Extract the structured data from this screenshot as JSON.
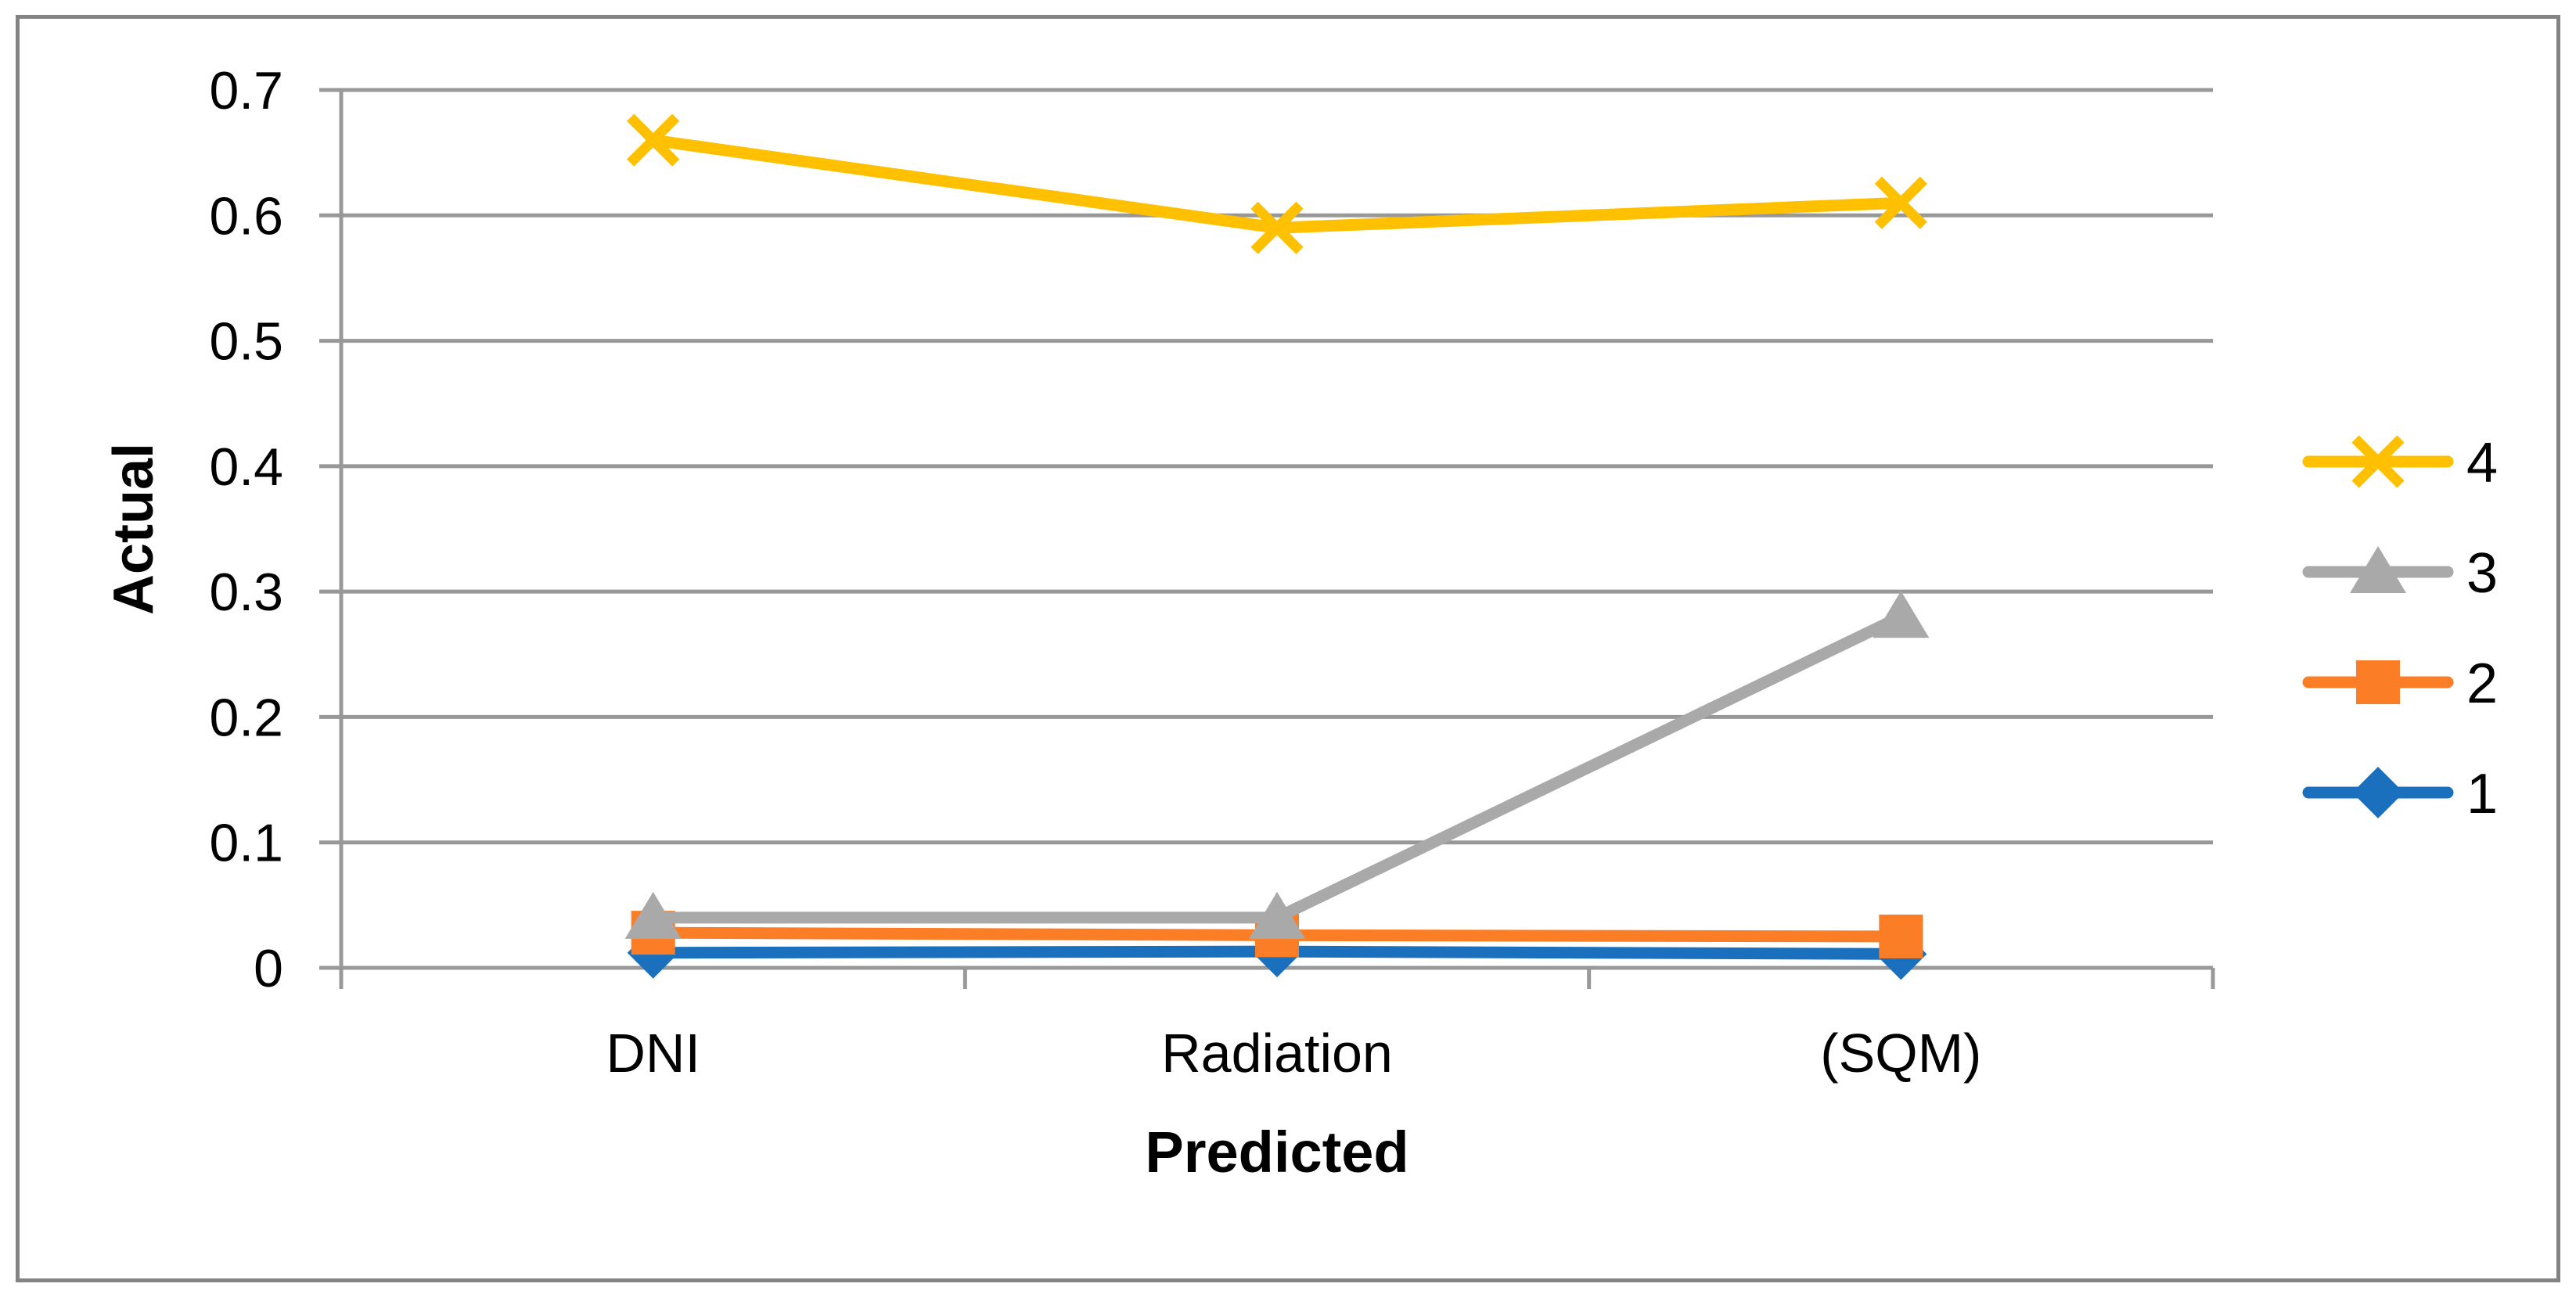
{
  "figure": {
    "background": "#ffffff",
    "border_color": "#838383"
  },
  "chart_data": {
    "type": "line",
    "title": "",
    "xlabel": "Predicted",
    "ylabel": "Actual",
    "categories": [
      "DNI",
      "Radiation",
      "(SQM)"
    ],
    "series": [
      {
        "name": "1",
        "marker": "diamond",
        "color": "#1B70BE",
        "values": [
          0.012,
          0.013,
          0.011
        ]
      },
      {
        "name": "2",
        "marker": "square",
        "color": "#FB7D25",
        "values": [
          0.028,
          0.026,
          0.025
        ]
      },
      {
        "name": "3",
        "marker": "triangle",
        "color": "#A9A9A9",
        "values": [
          0.04,
          0.04,
          0.28
        ]
      },
      {
        "name": "4",
        "marker": "x",
        "color": "#FFC000",
        "values": [
          0.66,
          0.59,
          0.61
        ]
      }
    ],
    "ylim": [
      0,
      0.7
    ],
    "ytick_step": 0.1,
    "ytick_labels": [
      "0",
      "0.1",
      "0.2",
      "0.3",
      "0.4",
      "0.5",
      "0.6",
      "0.7"
    ],
    "grid": true,
    "gridline_color": "#989898",
    "axis_color": "#989898",
    "legend_position": "right",
    "legend_order": [
      "4",
      "3",
      "2",
      "1"
    ]
  }
}
